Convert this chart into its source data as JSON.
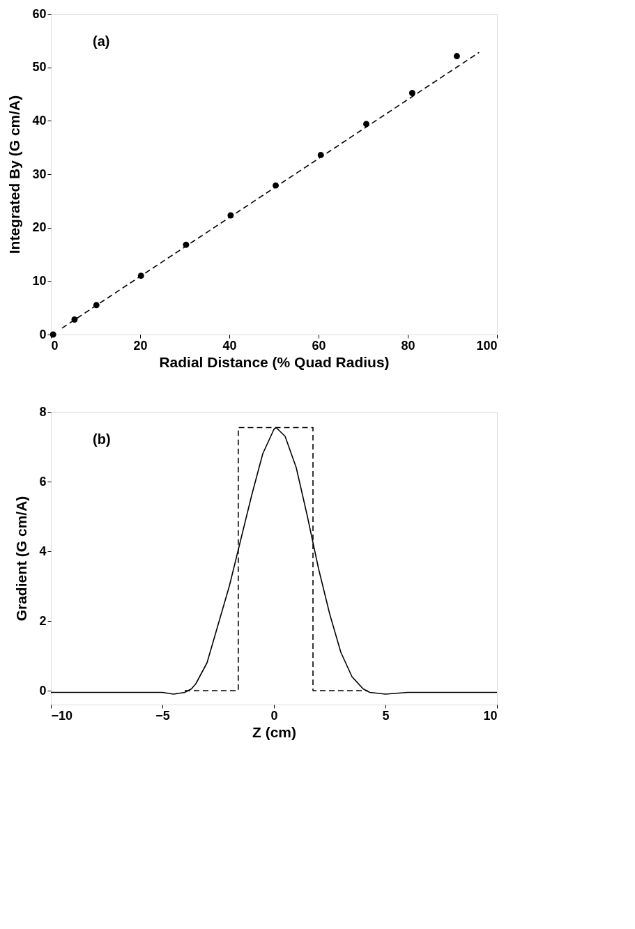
{
  "chart_data": [
    {
      "type": "scatter",
      "annotations": [
        "(a)"
      ],
      "xlabel": "Radial Distance (% Quad Radius)",
      "ylabel": "Integrated By (G cm/A)",
      "xlim": [
        0,
        100
      ],
      "ylim": [
        0,
        60
      ],
      "xticks": [
        0,
        20,
        40,
        60,
        80,
        100
      ],
      "yticks": [
        0,
        10,
        20,
        30,
        40,
        50,
        60
      ],
      "grid": false,
      "marker": "circle",
      "series": [
        {
          "color": "#000000",
          "x": [
            0.5,
            5.3,
            10.2,
            20.2,
            30.3,
            40.3,
            50.4,
            60.5,
            70.7,
            81,
            91
          ],
          "values": [
            0,
            2.8,
            5.5,
            11.0,
            16.8,
            22.3,
            27.9,
            33.6,
            39.4,
            45.2,
            52.1
          ]
        },
        {
          "type": "line",
          "line_style": "dashed",
          "marker": "none",
          "color": "#000000",
          "x": [
            2.5,
            96
          ],
          "values": [
            1.2,
            52.8
          ]
        }
      ]
    },
    {
      "type": "line",
      "annotations": [
        "(b)"
      ],
      "xlabel": "Z (cm)",
      "ylabel": "Gradient (G cm/A)",
      "xlim": [
        -10,
        10
      ],
      "ylim": [
        -0.4,
        8
      ],
      "xticks": [
        -10,
        -5,
        0,
        5,
        10
      ],
      "yticks": [
        0,
        2,
        4,
        6,
        8
      ],
      "grid": false,
      "series": [
        {
          "line_style": "solid",
          "marker": "none",
          "color": "#000000",
          "x": [
            -10,
            -5,
            -4.5,
            -4,
            -3.7,
            -3.5,
            -3,
            -2.5,
            -2,
            -1.5,
            -1,
            -0.5,
            0,
            0.1,
            0.5,
            1,
            1.5,
            2,
            2.5,
            3,
            3.5,
            4,
            4.3,
            5,
            6,
            10
          ],
          "values": [
            -0.05,
            -0.05,
            -0.1,
            -0.05,
            0.05,
            0.2,
            0.8,
            1.9,
            3.0,
            4.3,
            5.6,
            6.8,
            7.5,
            7.55,
            7.3,
            6.4,
            5.0,
            3.5,
            2.2,
            1.1,
            0.4,
            0.05,
            -0.05,
            -0.1,
            -0.05,
            -0.05
          ]
        },
        {
          "type": "line",
          "line_style": "dashed",
          "marker": "none",
          "color": "#000000",
          "x": [
            -4,
            -1.6,
            -1.6,
            1.75,
            1.75,
            4.2
          ],
          "values": [
            0,
            0,
            7.55,
            7.55,
            0,
            0
          ]
        }
      ]
    }
  ]
}
